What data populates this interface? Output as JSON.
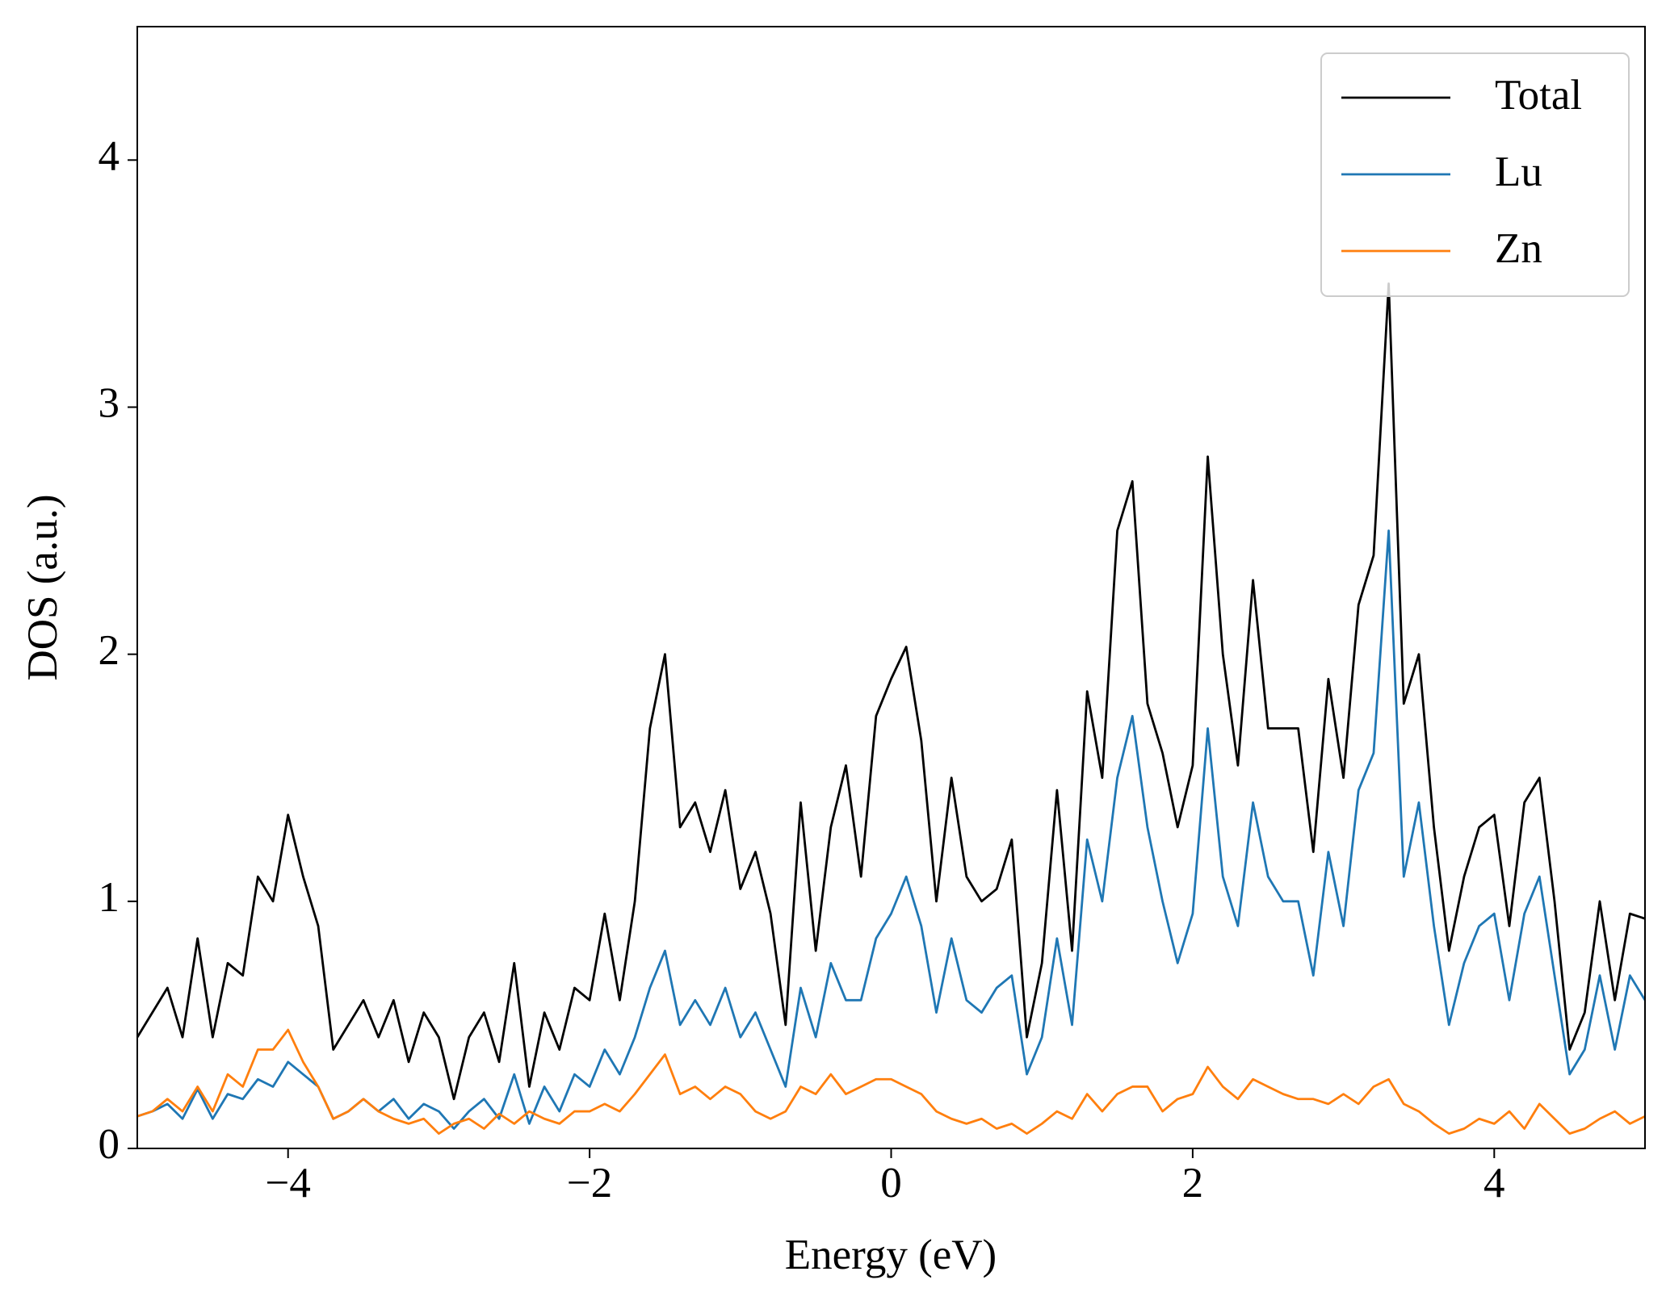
{
  "chart_data": {
    "type": "line",
    "xlabel": "Energy (eV)",
    "ylabel": "DOS (a.u.)",
    "x": [
      -5,
      -4.9,
      -4.8,
      -4.7,
      -4.6,
      -4.5,
      -4.4,
      -4.3,
      -4.2,
      -4.1,
      -4,
      -3.9,
      -3.8,
      -3.7,
      -3.6,
      -3.5,
      -3.4,
      -3.3,
      -3.2,
      -3.1,
      -3,
      -2.9,
      -2.8,
      -2.7,
      -2.6,
      -2.5,
      -2.4,
      -2.3,
      -2.2,
      -2.1,
      -2,
      -1.9,
      -1.8,
      -1.7,
      -1.6,
      -1.5,
      -1.4,
      -1.3,
      -1.2,
      -1.1,
      -1,
      -0.9,
      -0.8,
      -0.7,
      -0.6,
      -0.5,
      -0.4,
      -0.3,
      -0.2,
      -0.1,
      0,
      0.1,
      0.2,
      0.3,
      0.4,
      0.5,
      0.6,
      0.7,
      0.8,
      0.9,
      1,
      1.1,
      1.2,
      1.3,
      1.4,
      1.5,
      1.6,
      1.7,
      1.8,
      1.9,
      2,
      2.1,
      2.2,
      2.3,
      2.4,
      2.5,
      2.6,
      2.7,
      2.8,
      2.9,
      3,
      3.1,
      3.2,
      3.3,
      3.4,
      3.5,
      3.6,
      3.7,
      3.8,
      3.9,
      4,
      4.1,
      4.2,
      4.3,
      4.4,
      4.5,
      4.6,
      4.7,
      4.8,
      4.9,
      5
    ],
    "series": [
      {
        "name": "Total",
        "color": "#000000",
        "values": [
          0.45,
          0.55,
          0.65,
          0.45,
          0.85,
          0.45,
          0.75,
          0.7,
          1.1,
          1.0,
          1.35,
          1.1,
          0.9,
          0.4,
          0.5,
          0.6,
          0.45,
          0.6,
          0.35,
          0.55,
          0.45,
          0.2,
          0.45,
          0.55,
          0.35,
          0.75,
          0.25,
          0.55,
          0.4,
          0.65,
          0.6,
          0.95,
          0.6,
          1.0,
          1.7,
          2.0,
          1.3,
          1.4,
          1.2,
          1.45,
          1.05,
          1.2,
          0.95,
          0.5,
          1.4,
          0.8,
          1.3,
          1.55,
          1.1,
          1.75,
          1.9,
          2.03,
          1.65,
          1.0,
          1.5,
          1.1,
          1.0,
          1.05,
          1.25,
          0.45,
          0.75,
          1.45,
          0.8,
          1.85,
          1.5,
          2.5,
          2.7,
          1.8,
          1.6,
          1.3,
          1.55,
          2.8,
          2.0,
          1.55,
          2.3,
          1.7,
          1.7,
          1.7,
          1.2,
          1.9,
          1.5,
          2.2,
          2.4,
          3.5,
          1.8,
          2.0,
          1.3,
          0.8,
          1.1,
          1.3,
          1.35,
          0.9,
          1.4,
          1.5,
          1.0,
          0.4,
          0.55,
          1.0,
          0.6,
          0.95,
          0.93
        ]
      },
      {
        "name": "Lu",
        "color": "#1f77b4",
        "values": [
          0.13,
          0.15,
          0.18,
          0.12,
          0.24,
          0.12,
          0.22,
          0.2,
          0.28,
          0.25,
          0.35,
          0.3,
          0.25,
          0.12,
          0.15,
          0.2,
          0.15,
          0.2,
          0.12,
          0.18,
          0.15,
          0.08,
          0.15,
          0.2,
          0.12,
          0.3,
          0.1,
          0.25,
          0.15,
          0.3,
          0.25,
          0.4,
          0.3,
          0.45,
          0.65,
          0.8,
          0.5,
          0.6,
          0.5,
          0.65,
          0.45,
          0.55,
          0.4,
          0.25,
          0.65,
          0.45,
          0.75,
          0.6,
          0.6,
          0.85,
          0.95,
          1.1,
          0.9,
          0.55,
          0.85,
          0.6,
          0.55,
          0.65,
          0.7,
          0.3,
          0.45,
          0.85,
          0.5,
          1.25,
          1.0,
          1.5,
          1.75,
          1.3,
          1.0,
          0.75,
          0.95,
          1.7,
          1.1,
          0.9,
          1.4,
          1.1,
          1.0,
          1.0,
          0.7,
          1.2,
          0.9,
          1.45,
          1.6,
          2.5,
          1.1,
          1.4,
          0.9,
          0.5,
          0.75,
          0.9,
          0.95,
          0.6,
          0.95,
          1.1,
          0.7,
          0.3,
          0.4,
          0.7,
          0.4,
          0.7,
          0.6
        ]
      },
      {
        "name": "Zn",
        "color": "#ff7f0e",
        "values": [
          0.13,
          0.15,
          0.2,
          0.15,
          0.25,
          0.15,
          0.3,
          0.25,
          0.4,
          0.4,
          0.48,
          0.35,
          0.25,
          0.12,
          0.15,
          0.2,
          0.15,
          0.12,
          0.1,
          0.12,
          0.06,
          0.1,
          0.12,
          0.08,
          0.14,
          0.1,
          0.15,
          0.12,
          0.1,
          0.15,
          0.15,
          0.18,
          0.15,
          0.22,
          0.3,
          0.38,
          0.22,
          0.25,
          0.2,
          0.25,
          0.22,
          0.15,
          0.12,
          0.15,
          0.25,
          0.22,
          0.3,
          0.22,
          0.25,
          0.28,
          0.28,
          0.25,
          0.22,
          0.15,
          0.12,
          0.1,
          0.12,
          0.08,
          0.1,
          0.06,
          0.1,
          0.15,
          0.12,
          0.22,
          0.15,
          0.22,
          0.25,
          0.25,
          0.15,
          0.2,
          0.22,
          0.33,
          0.25,
          0.2,
          0.28,
          0.25,
          0.22,
          0.2,
          0.2,
          0.18,
          0.22,
          0.18,
          0.25,
          0.28,
          0.18,
          0.15,
          0.1,
          0.06,
          0.08,
          0.12,
          0.1,
          0.15,
          0.08,
          0.18,
          0.12,
          0.06,
          0.08,
          0.12,
          0.15,
          0.1,
          0.13
        ]
      }
    ],
    "xlim": [
      -5,
      5
    ],
    "ylim": [
      0,
      4.54
    ],
    "xticks": [
      {
        "value": -4,
        "label": "−4"
      },
      {
        "value": -2,
        "label": "−2"
      },
      0,
      2,
      4
    ],
    "yticks": [
      0,
      1,
      2,
      3,
      4
    ],
    "grid": false,
    "legend": "upper right"
  }
}
